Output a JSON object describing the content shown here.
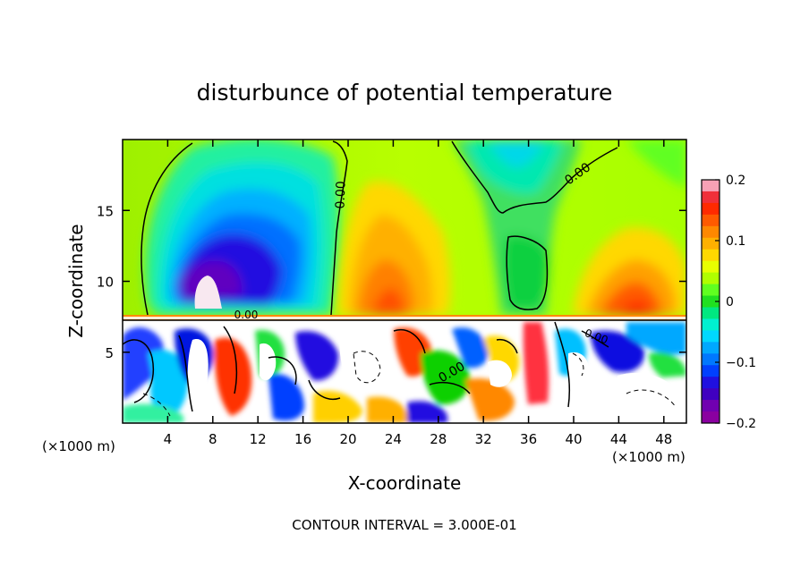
{
  "chart_data": {
    "type": "heatmap",
    "title": "disturbunce of potential temperature",
    "xlabel": "X-coordinate",
    "ylabel": "Z-coordinate",
    "x_unit_left": "(×1000 m)",
    "x_unit_right": "(×1000 m)",
    "xlim": [
      0,
      50
    ],
    "ylim": [
      0,
      20
    ],
    "xticks": [
      4,
      8,
      12,
      16,
      20,
      24,
      28,
      32,
      36,
      40,
      44,
      48
    ],
    "yticks": [
      5,
      10,
      15
    ],
    "colorbar": {
      "range": [
        -0.2,
        0.2
      ],
      "ticks": [
        0.2,
        0.1,
        0,
        -0.1,
        -0.2
      ],
      "tick_labels": [
        "0.2",
        "0.1",
        "0",
        "−0.1",
        "−0.2"
      ],
      "colors": [
        "#f7a1b5",
        "#f0303a",
        "#ff2a00",
        "#ff5a00",
        "#ff8800",
        "#ffb000",
        "#ffd800",
        "#e8ff00",
        "#b0ff00",
        "#60ff20",
        "#20e020",
        "#00e880",
        "#00f0d0",
        "#00d8ff",
        "#00a8ff",
        "#0078ff",
        "#0040ff",
        "#2010e0",
        "#4000c0",
        "#7000b0",
        "#8a00a0"
      ]
    },
    "contour_labels": [
      "0.00",
      "0.00",
      "0.00",
      "0.00",
      "0.00"
    ],
    "note": "CONTOUR INTERVAL = 3.000E-01"
  }
}
